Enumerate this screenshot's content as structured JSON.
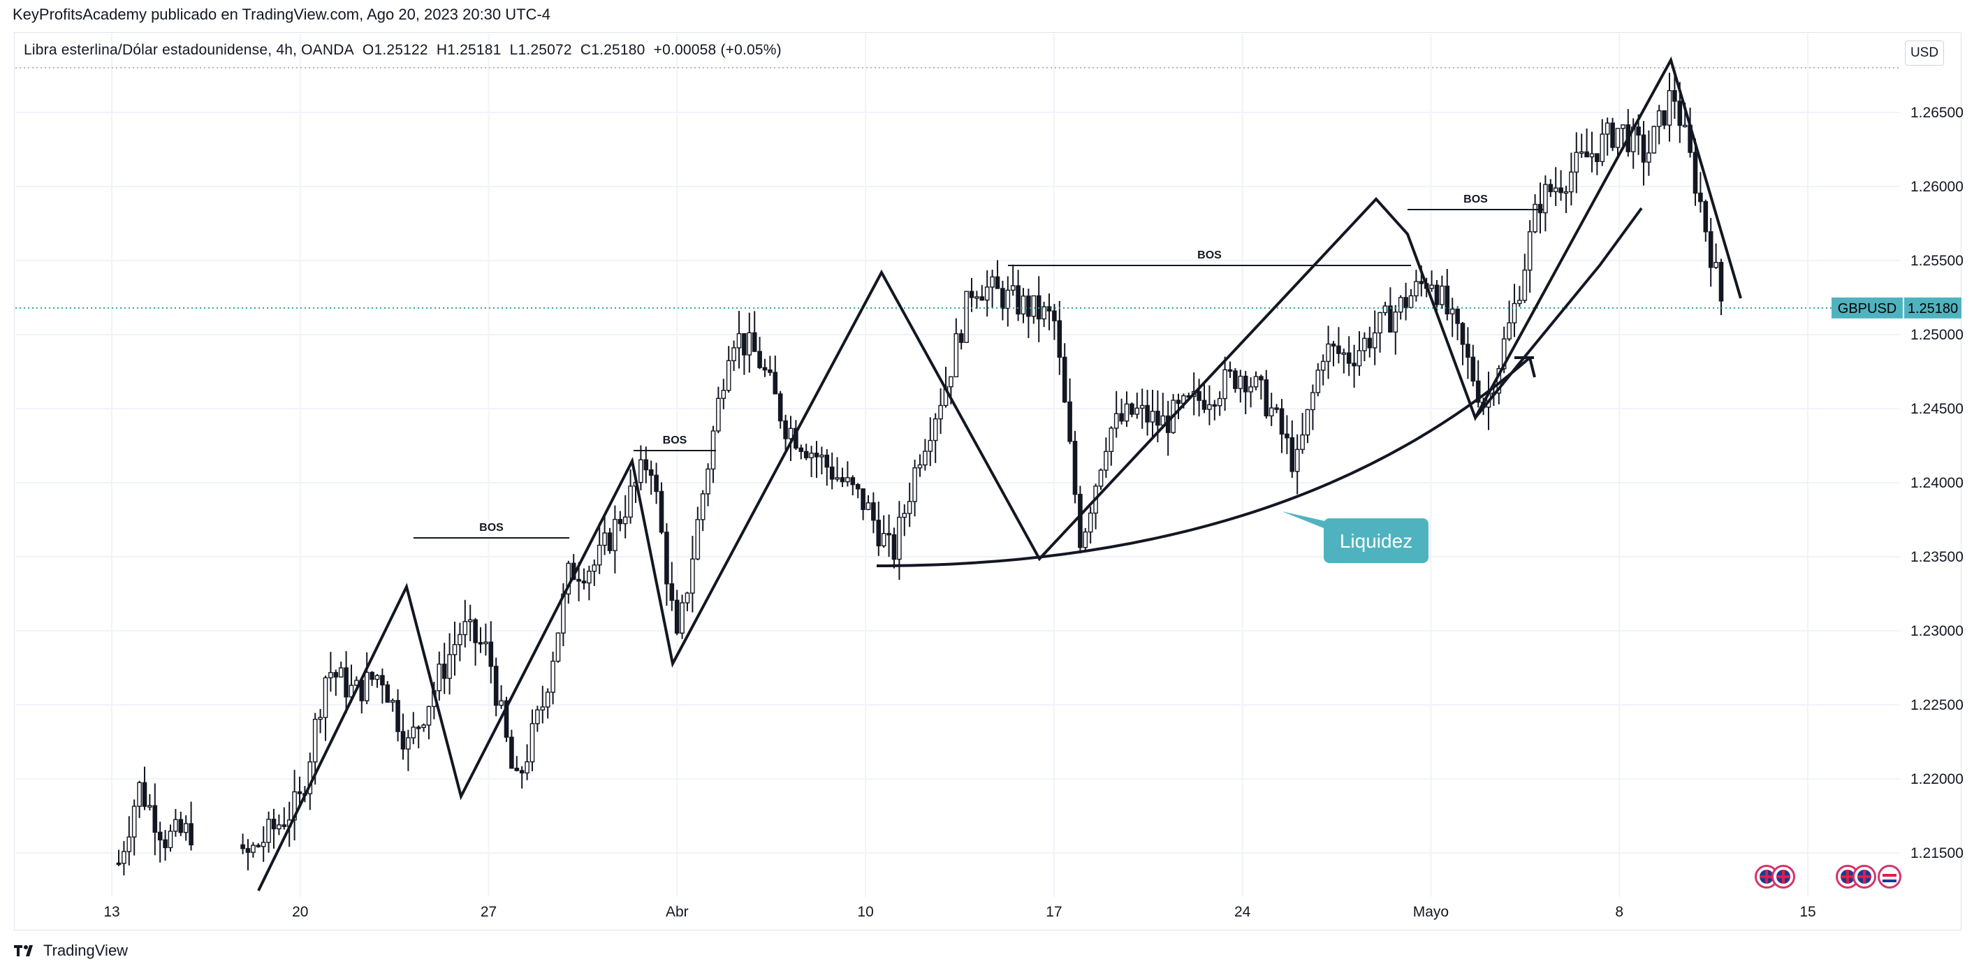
{
  "header": {
    "publisher_line": "KeyProfitsAcademy publicado en TradingView.com, Ago 20, 2023 20:30 UTC-4"
  },
  "legend": {
    "symbol_desc": "Libra esterlina/Dólar estadounidense, 4h, OANDA",
    "open": "O1.25122",
    "high": "H1.25181",
    "low": "L1.25072",
    "close": "C1.25180",
    "change": "+0.00058 (+0.05%)"
  },
  "currency_button": "USD",
  "footer": {
    "brand": "TradingView"
  },
  "colors": {
    "up": "#131722",
    "down": "#131722",
    "price_line": "#26a69a",
    "accent": "#4fb3bf",
    "grid": "#f0f3fa"
  },
  "icons": [
    "tradingview-logo-icon",
    "uk-flag-icon",
    "us-flag-icon"
  ],
  "chart_data": {
    "type": "candlestick",
    "symbol": "GBPUSD",
    "last_price": "1.25180",
    "y_ticks": [
      "1.26500",
      "1.26000",
      "1.25500",
      "1.25000",
      "1.24500",
      "1.24000",
      "1.23500",
      "1.23000",
      "1.22500",
      "1.22000",
      "1.21500"
    ],
    "x_ticks": [
      "13",
      "20",
      "27",
      "Abr",
      "10",
      "17",
      "24",
      "Mayo",
      "8",
      "15"
    ],
    "ylim": [
      1.2115,
      1.2695
    ],
    "x_range": [
      "Mar 13",
      "May 16"
    ],
    "price_path": [
      [
        "Mar 13",
        1.2125
      ],
      [
        "Mar 14",
        1.2195
      ],
      [
        "Mar 15",
        1.216
      ],
      [
        "Mar 16",
        1.2165
      ],
      [
        "Mar 17",
        1.2128
      ],
      [
        "Mar 20",
        1.2185
      ],
      [
        "Mar 21",
        1.2275
      ],
      [
        "Mar 22",
        1.2258
      ],
      [
        "Mar 23",
        1.2272
      ],
      [
        "Mar 24",
        1.2222
      ],
      [
        "Mar 26",
        1.2302
      ],
      [
        "Mar 27",
        1.2285
      ],
      [
        "Mar 28",
        1.2193
      ],
      [
        "Mar 29",
        1.225
      ],
      [
        "Mar 30",
        1.234
      ],
      [
        "Mar 31",
        1.2345
      ],
      [
        "Apr 2",
        1.2418
      ],
      [
        "Apr 3",
        1.229
      ],
      [
        "Apr 4",
        1.2398
      ],
      [
        "Apr 5",
        1.2502
      ],
      [
        "Apr 6",
        1.2485
      ],
      [
        "Apr 7",
        1.244
      ],
      [
        "Apr 10",
        1.2385
      ],
      [
        "Apr 11",
        1.235
      ],
      [
        "Apr 12",
        1.242
      ],
      [
        "Apr 13",
        1.2468
      ],
      [
        "Apr 14",
        1.2535
      ],
      [
        "Apr 17",
        1.251
      ],
      [
        "Apr 18",
        1.236
      ],
      [
        "Apr 19",
        1.2435
      ],
      [
        "Apr 20",
        1.2448
      ],
      [
        "Apr 21",
        1.244
      ],
      [
        "Apr 24",
        1.2475
      ],
      [
        "Apr 25",
        1.2452
      ],
      [
        "Apr 26",
        1.241
      ],
      [
        "Apr 27",
        1.249
      ],
      [
        "Apr 28",
        1.2485
      ],
      [
        "May 1",
        1.254
      ],
      [
        "May 2",
        1.2498
      ],
      [
        "May 3",
        1.2452
      ],
      [
        "May 4",
        1.251
      ],
      [
        "May 5",
        1.259
      ],
      [
        "May 8",
        1.264
      ],
      [
        "May 9",
        1.262
      ],
      [
        "May 10",
        1.2665
      ],
      [
        "May 11",
        1.259
      ],
      [
        "May 12",
        1.2505
      ],
      [
        "May 13",
        1.2518
      ]
    ],
    "annotations": {
      "bos_labels": [
        "BOS",
        "BOS",
        "BOS",
        "BOS"
      ],
      "callout": "Liquidez"
    },
    "grid": true
  }
}
